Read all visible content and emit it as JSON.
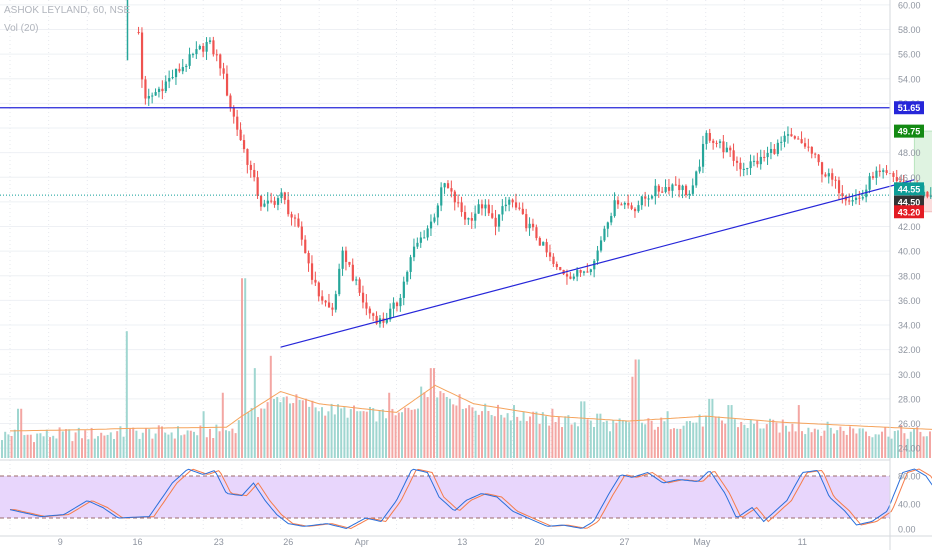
{
  "chart_data": {
    "type": "candlestick",
    "symbol": "ASHOK LEYLAND, 60, NSE",
    "volume_label": "Vol (20)",
    "y_ticks": [
      "60.00",
      "58.00",
      "56.00",
      "54.00",
      "52.00",
      "50.00",
      "48.00",
      "46.00",
      "44.00",
      "42.00",
      "40.00",
      "38.00",
      "36.00",
      "34.00",
      "32.00",
      "30.00",
      "28.00",
      "26.00",
      "24.00"
    ],
    "ylim": [
      23.2,
      60.4
    ],
    "x_ticks": [
      "9",
      "16",
      "23",
      "26",
      "Apr",
      "13",
      "20",
      "27",
      "May",
      "11"
    ],
    "osc_ticks": [
      "80.00",
      "40.00",
      "0.00"
    ],
    "osc_range": [
      0,
      100
    ],
    "osc_band": [
      20,
      80
    ],
    "price_tags": [
      {
        "label": "51.65",
        "value": 51.65,
        "color": "#2626d9"
      },
      {
        "label": "49.75",
        "value": 49.75,
        "color": "#138a13"
      },
      {
        "label": "44.55",
        "value": 44.55,
        "color": "#0e9d97"
      },
      {
        "label": "44.50",
        "value": 44.5,
        "color": "#333333"
      },
      {
        "label": "43.20",
        "value": 43.2,
        "color": "#e31b23"
      }
    ],
    "horizontal_line": 51.65,
    "trendline": {
      "from": [
        3.5,
        32.2
      ],
      "to": [
        11.7,
        45.8
      ]
    },
    "target_box": {
      "from_x": 11.7,
      "to_x": 13.7,
      "entry": 44.55,
      "target": 49.75,
      "stop": 43.2
    },
    "candle_waypoints": [
      [
        1.65,
        57.8
      ],
      [
        1.72,
        52.0
      ],
      [
        2.55,
        57.0
      ],
      [
        2.7,
        55.3
      ],
      [
        2.85,
        51.5
      ],
      [
        3.0,
        48.5
      ],
      [
        3.25,
        43.5
      ],
      [
        3.5,
        44.5
      ],
      [
        3.75,
        41.2
      ],
      [
        3.95,
        36.8
      ],
      [
        4.15,
        35.0
      ],
      [
        4.3,
        40.0
      ],
      [
        4.45,
        37.5
      ],
      [
        4.6,
        35.2
      ],
      [
        4.8,
        34.2
      ],
      [
        5.0,
        35.8
      ],
      [
        5.2,
        40.0
      ],
      [
        5.45,
        42.5
      ],
      [
        5.6,
        45.5
      ],
      [
        5.75,
        44.0
      ],
      [
        5.9,
        42.5
      ],
      [
        6.1,
        43.8
      ],
      [
        6.25,
        42.2
      ],
      [
        6.45,
        44.2
      ],
      [
        6.6,
        42.8
      ],
      [
        6.8,
        41.2
      ],
      [
        7.05,
        38.5
      ],
      [
        7.3,
        38.0
      ],
      [
        7.55,
        39.2
      ],
      [
        7.7,
        42.5
      ],
      [
        7.85,
        44.2
      ],
      [
        8.05,
        43.5
      ],
      [
        8.3,
        44.8
      ],
      [
        8.6,
        45.5
      ],
      [
        8.8,
        44.5
      ],
      [
        9.0,
        49.5
      ],
      [
        9.2,
        48.5
      ],
      [
        9.45,
        46.8
      ],
      [
        9.7,
        47.4
      ],
      [
        9.85,
        48.2
      ],
      [
        10.05,
        49.2
      ],
      [
        10.3,
        48.5
      ],
      [
        10.5,
        46.5
      ],
      [
        10.8,
        44.5
      ],
      [
        11.0,
        44.2
      ],
      [
        11.15,
        46.3
      ],
      [
        11.4,
        46.0
      ],
      [
        11.6,
        45.3
      ],
      [
        11.85,
        44.4
      ],
      [
        12.05,
        43.9
      ],
      [
        12.2,
        44.4
      ],
      [
        12.4,
        44.2
      ],
      [
        12.6,
        44.5
      ]
    ],
    "volume_waypoints": [
      [
        0.0,
        24.8
      ],
      [
        1.0,
        24.9
      ],
      [
        1.5,
        25.0
      ],
      [
        2.8,
        25.1
      ],
      [
        3.0,
        26.0
      ],
      [
        3.5,
        28.0
      ],
      [
        4.0,
        27.0
      ],
      [
        5.0,
        26.3
      ],
      [
        5.5,
        28.5
      ],
      [
        6.0,
        27.0
      ],
      [
        7.0,
        26.0
      ],
      [
        8.0,
        25.6
      ],
      [
        9.0,
        26.0
      ],
      [
        10.0,
        25.5
      ],
      [
        11.0,
        25.2
      ],
      [
        12.0,
        24.9
      ],
      [
        12.5,
        24.8
      ]
    ],
    "volume_spikes": [
      [
        0.05,
        25.5
      ],
      [
        0.12,
        27.2
      ],
      [
        1.5,
        33.5
      ],
      [
        2.5,
        27.0
      ],
      [
        2.75,
        28.5
      ],
      [
        3.0,
        37.8
      ],
      [
        3.15,
        30.5
      ],
      [
        3.35,
        31.5
      ],
      [
        3.7,
        28.2
      ],
      [
        4.5,
        27.0
      ],
      [
        4.9,
        28.5
      ],
      [
        5.3,
        29.0
      ],
      [
        5.45,
        30.5
      ],
      [
        6.5,
        27.5
      ],
      [
        7.0,
        27.2
      ],
      [
        7.4,
        27.8
      ],
      [
        7.6,
        26.8
      ],
      [
        8.05,
        29.8
      ],
      [
        8.1,
        31.2
      ],
      [
        8.5,
        27.0
      ],
      [
        9.05,
        28.0
      ],
      [
        9.3,
        27.5
      ],
      [
        10.2,
        27.5
      ],
      [
        11.0,
        25.6
      ],
      [
        12.2,
        25.2
      ]
    ],
    "osc_waypoints": [
      [
        0.0,
        32
      ],
      [
        0.4,
        22
      ],
      [
        0.7,
        25
      ],
      [
        1.0,
        45
      ],
      [
        1.2,
        35
      ],
      [
        1.4,
        20
      ],
      [
        1.8,
        22
      ],
      [
        2.1,
        70
      ],
      [
        2.3,
        90
      ],
      [
        2.5,
        82
      ],
      [
        2.65,
        88
      ],
      [
        2.8,
        55
      ],
      [
        3.0,
        52
      ],
      [
        3.15,
        70
      ],
      [
        3.3,
        45
      ],
      [
        3.45,
        25
      ],
      [
        3.6,
        12
      ],
      [
        3.8,
        8
      ],
      [
        4.1,
        12
      ],
      [
        4.35,
        5
      ],
      [
        4.6,
        20
      ],
      [
        4.8,
        15
      ],
      [
        5.0,
        45
      ],
      [
        5.2,
        90
      ],
      [
        5.4,
        85
      ],
      [
        5.55,
        50
      ],
      [
        5.75,
        30
      ],
      [
        5.9,
        45
      ],
      [
        6.1,
        55
      ],
      [
        6.3,
        50
      ],
      [
        6.5,
        30
      ],
      [
        6.7,
        20
      ],
      [
        6.95,
        8
      ],
      [
        7.15,
        10
      ],
      [
        7.4,
        5
      ],
      [
        7.55,
        15
      ],
      [
        7.75,
        55
      ],
      [
        7.9,
        82
      ],
      [
        8.05,
        78
      ],
      [
        8.25,
        85
      ],
      [
        8.45,
        70
      ],
      [
        8.65,
        75
      ],
      [
        8.9,
        72
      ],
      [
        9.05,
        88
      ],
      [
        9.25,
        55
      ],
      [
        9.4,
        20
      ],
      [
        9.6,
        35
      ],
      [
        9.75,
        15
      ],
      [
        10.05,
        45
      ],
      [
        10.25,
        85
      ],
      [
        10.45,
        88
      ],
      [
        10.6,
        50
      ],
      [
        10.8,
        30
      ],
      [
        10.95,
        10
      ],
      [
        11.15,
        15
      ],
      [
        11.35,
        30
      ],
      [
        11.55,
        85
      ],
      [
        11.7,
        90
      ],
      [
        11.85,
        80
      ],
      [
        12.1,
        40
      ],
      [
        12.35,
        5
      ],
      [
        12.5,
        2
      ],
      [
        12.6,
        10
      ],
      [
        12.68,
        12
      ]
    ]
  }
}
